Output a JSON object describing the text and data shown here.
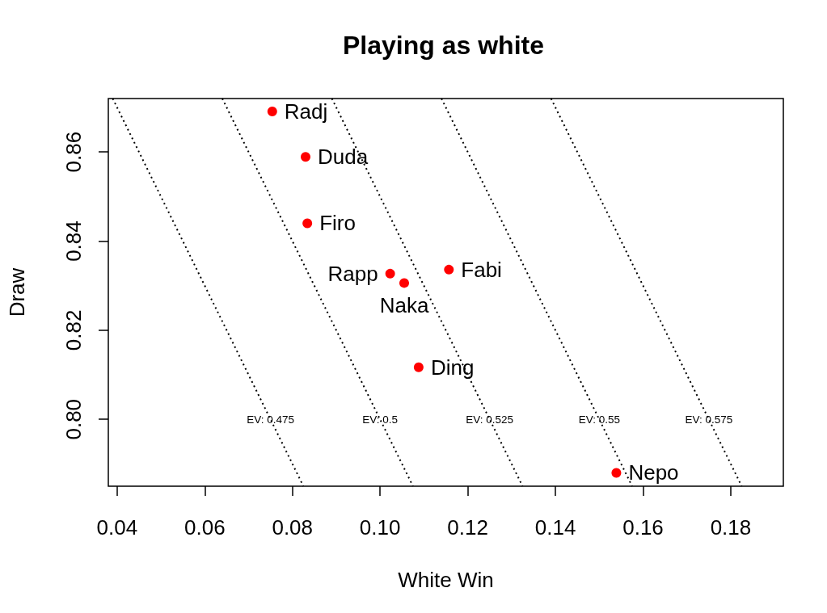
{
  "chart_data": {
    "type": "scatter",
    "title": "Playing as white",
    "xlabel": "White Win",
    "ylabel": "Draw",
    "xlim": [
      0.038,
      0.192
    ],
    "ylim": [
      0.785,
      0.872
    ],
    "xticks": [
      0.04,
      0.06,
      0.08,
      {
        "value": 0.1,
        "label": "0.10"
      },
      0.12,
      0.14,
      0.16,
      0.18
    ],
    "yticks": [
      {
        "value": 0.8,
        "label": "0.80"
      },
      0.82,
      0.84,
      0.86
    ],
    "marker": "circle",
    "series": [
      {
        "name": "Radj",
        "color": "#ff0000",
        "x": [
          0.0754
        ],
        "values": [
          0.8691
        ]
      },
      {
        "name": "Duda",
        "color": "#ff0000",
        "x": [
          0.083
        ],
        "values": [
          0.8589
        ]
      },
      {
        "name": "Firo",
        "color": "#ff0000",
        "x": [
          0.0834
        ],
        "values": [
          0.844
        ]
      },
      {
        "name": "Rapp",
        "color": "#ff0000",
        "x": [
          0.1023
        ],
        "values": [
          0.8327
        ]
      },
      {
        "name": "Naka",
        "color": "#ff0000",
        "x": [
          0.1055
        ],
        "values": [
          0.8306
        ]
      },
      {
        "name": "Fabi",
        "color": "#ff0000",
        "x": [
          0.1157
        ],
        "values": [
          0.8336
        ]
      },
      {
        "name": "Ding",
        "color": "#ff0000",
        "x": [
          0.1088
        ],
        "values": [
          0.8117
        ]
      },
      {
        "name": "Nepo",
        "color": "#ff0000",
        "x": [
          0.1539
        ],
        "values": [
          0.788
        ]
      },
      {
        "type": "line",
        "color": "#000000",
        "marker": "none",
        "line_style": "dotted",
        "x": [
          0.039,
          0.0825
        ],
        "values": [
          0.872,
          0.785
        ]
      },
      {
        "type": "line",
        "color": "#000000",
        "marker": "none",
        "line_style": "dotted",
        "x": [
          0.064,
          0.1075
        ],
        "values": [
          0.872,
          0.785
        ]
      },
      {
        "type": "line",
        "color": "#000000",
        "marker": "none",
        "line_style": "dotted",
        "x": [
          0.089,
          0.1325
        ],
        "values": [
          0.872,
          0.785
        ]
      },
      {
        "type": "line",
        "color": "#000000",
        "marker": "none",
        "line_style": "dotted",
        "x": [
          0.114,
          0.1575
        ],
        "values": [
          0.872,
          0.785
        ]
      },
      {
        "type": "line",
        "color": "#000000",
        "marker": "none",
        "line_style": "dotted",
        "x": [
          0.139,
          0.1825
        ],
        "values": [
          0.872,
          0.785
        ]
      }
    ],
    "annotations": [
      {
        "text": "EV: 0.475",
        "x": 0.075,
        "y": 0.8
      },
      {
        "text": "EV: 0.5",
        "x": 0.1,
        "y": 0.8
      },
      {
        "text": "EV: 0.525",
        "x": 0.125,
        "y": 0.8
      },
      {
        "text": "EV: 0.55",
        "x": 0.15,
        "y": 0.8
      },
      {
        "text": "EV: 0.575",
        "x": 0.175,
        "y": 0.8
      }
    ]
  }
}
